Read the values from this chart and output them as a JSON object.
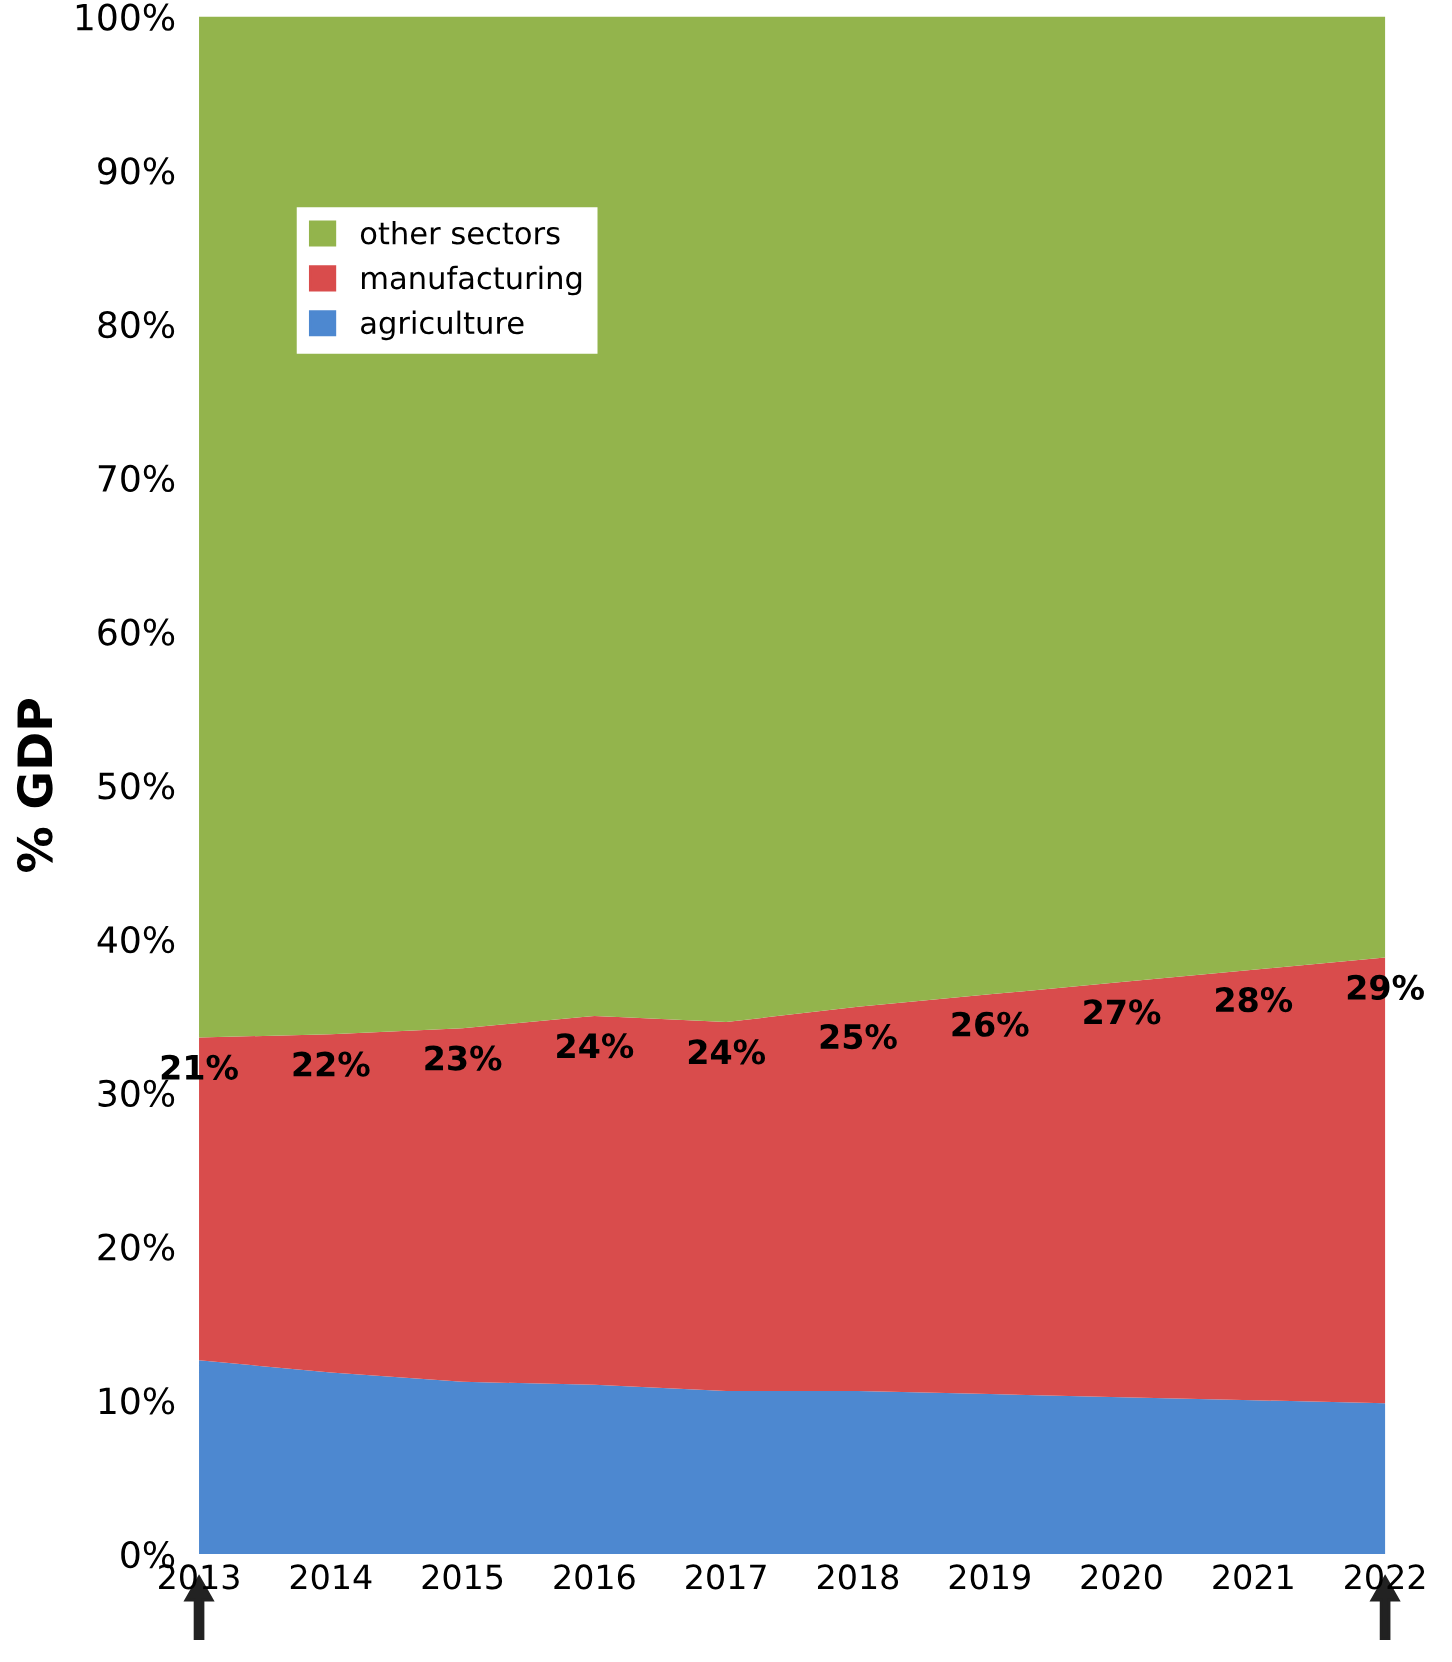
{
  "chart_data": {
    "type": "area",
    "stacked": true,
    "ylabel": "% GDP",
    "categories": [
      "2013",
      "2014",
      "2015",
      "2016",
      "2017",
      "2018",
      "2019",
      "2020",
      "2021",
      "2022"
    ],
    "series": [
      {
        "name": "agriculture",
        "color": "#4d88d0",
        "values": [
          12.6,
          11.8,
          11.2,
          11.0,
          10.6,
          10.6,
          10.4,
          10.2,
          10.0,
          9.8
        ]
      },
      {
        "name": "manufacturing",
        "color": "#d94c4c",
        "values": [
          21,
          22,
          23,
          24,
          24,
          25,
          26,
          27,
          28,
          29
        ],
        "value_labels": [
          "21%",
          "22%",
          "23%",
          "24%",
          "24%",
          "25%",
          "26%",
          "27%",
          "28%",
          "29%"
        ]
      },
      {
        "name": "other sectors",
        "color": "#93b44c",
        "values": [
          66.4,
          66.2,
          65.8,
          65.0,
          65.4,
          64.4,
          63.6,
          62.8,
          62.0,
          61.2
        ]
      }
    ],
    "ylim": [
      0,
      100
    ],
    "yticks": [
      {
        "value": 0,
        "label": "0%"
      },
      {
        "value": 10,
        "label": "10%"
      },
      {
        "value": 20,
        "label": "20%"
      },
      {
        "value": 30,
        "label": "30%"
      },
      {
        "value": 40,
        "label": "40%"
      },
      {
        "value": 50,
        "label": "50%"
      },
      {
        "value": 60,
        "label": "60%"
      },
      {
        "value": 70,
        "label": "70%"
      },
      {
        "value": 80,
        "label": "80%"
      },
      {
        "value": 90,
        "label": "90%"
      },
      {
        "value": 100,
        "label": "100%"
      }
    ],
    "legend": "top left",
    "grid": false
  }
}
